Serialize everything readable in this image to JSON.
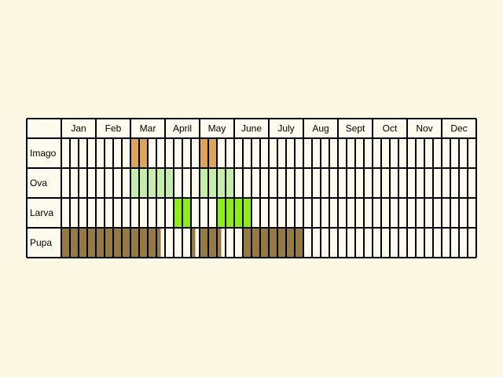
{
  "chart_data": {
    "type": "table",
    "title": "",
    "months": [
      "Jan",
      "Feb",
      "Mar",
      "April",
      "May",
      "June",
      "July",
      "Aug",
      "Sept",
      "Oct",
      "Nov",
      "Dec"
    ],
    "stages": [
      {
        "name": "Imago",
        "color": "#dea558",
        "cells": [
          0,
          0,
          0,
          0,
          0,
          0,
          0,
          0,
          1,
          1,
          0,
          0,
          0,
          0,
          0,
          0,
          1,
          1,
          0,
          0,
          0,
          0,
          0,
          0,
          0,
          0,
          0,
          0,
          0,
          0,
          0,
          0,
          0,
          0,
          0,
          0,
          0,
          0,
          0,
          0,
          0,
          0,
          0,
          0,
          0,
          0,
          0,
          0
        ]
      },
      {
        "name": "Ova",
        "color": "#c6eeab",
        "cells": [
          0,
          0,
          0,
          0,
          0,
          0,
          0,
          0,
          1,
          1,
          1,
          1,
          1,
          0,
          0,
          0,
          1,
          1,
          1,
          1,
          0,
          0,
          0,
          0,
          0,
          0,
          0,
          0,
          0,
          0,
          0,
          0,
          0,
          0,
          0,
          0,
          0,
          0,
          0,
          0,
          0,
          0,
          0,
          0,
          0,
          0,
          0,
          0
        ]
      },
      {
        "name": "Larva",
        "color": "#8cee14",
        "cells": [
          0,
          0,
          0,
          0,
          0,
          0,
          0,
          0,
          0,
          0,
          0,
          0,
          0,
          1,
          1,
          0,
          0,
          0,
          1,
          1,
          1,
          1,
          0,
          0,
          0,
          0,
          0,
          0,
          0,
          0,
          0,
          0,
          0,
          0,
          0,
          0,
          0,
          0,
          0,
          0,
          0,
          0,
          0,
          0,
          0,
          0,
          0,
          0
        ]
      },
      {
        "name": "Pupa",
        "color": "#957b43",
        "cells": [
          1,
          1,
          1,
          1,
          1,
          1,
          1,
          1,
          1,
          1,
          1,
          0.5,
          0,
          0,
          0,
          0.5,
          1,
          1,
          0.5,
          0,
          0,
          1,
          1,
          1,
          1,
          1,
          1,
          1,
          0,
          0,
          0,
          0,
          0,
          0,
          0,
          0,
          0,
          0,
          0,
          0,
          0,
          0,
          0,
          0,
          0,
          0,
          0,
          0
        ]
      }
    ],
    "grid_color": "#000000",
    "cell_background": "#fdfbee"
  }
}
